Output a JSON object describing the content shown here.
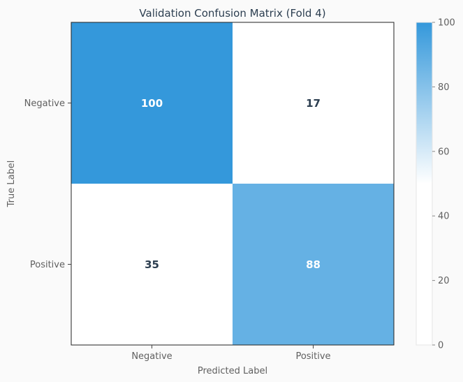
{
  "chart_data": {
    "type": "heatmap",
    "title": "Validation Confusion Matrix (Fold 4)",
    "xlabel": "Predicted Label",
    "ylabel": "True Label",
    "x_categories": [
      "Negative",
      "Positive"
    ],
    "y_categories": [
      "Negative",
      "Positive"
    ],
    "values": [
      [
        100,
        17
      ],
      [
        35,
        88
      ]
    ],
    "colorbar": {
      "range": [
        0,
        100
      ],
      "ticks": [
        "0",
        "20",
        "40",
        "60",
        "80",
        "100"
      ],
      "color_low": "#ffffff",
      "color_high": "#3498db"
    },
    "colors": {
      "text_dark": "#2c3e50",
      "text_light": "#ffffff",
      "axis_text": "#606060",
      "background": "#fafafa"
    }
  }
}
